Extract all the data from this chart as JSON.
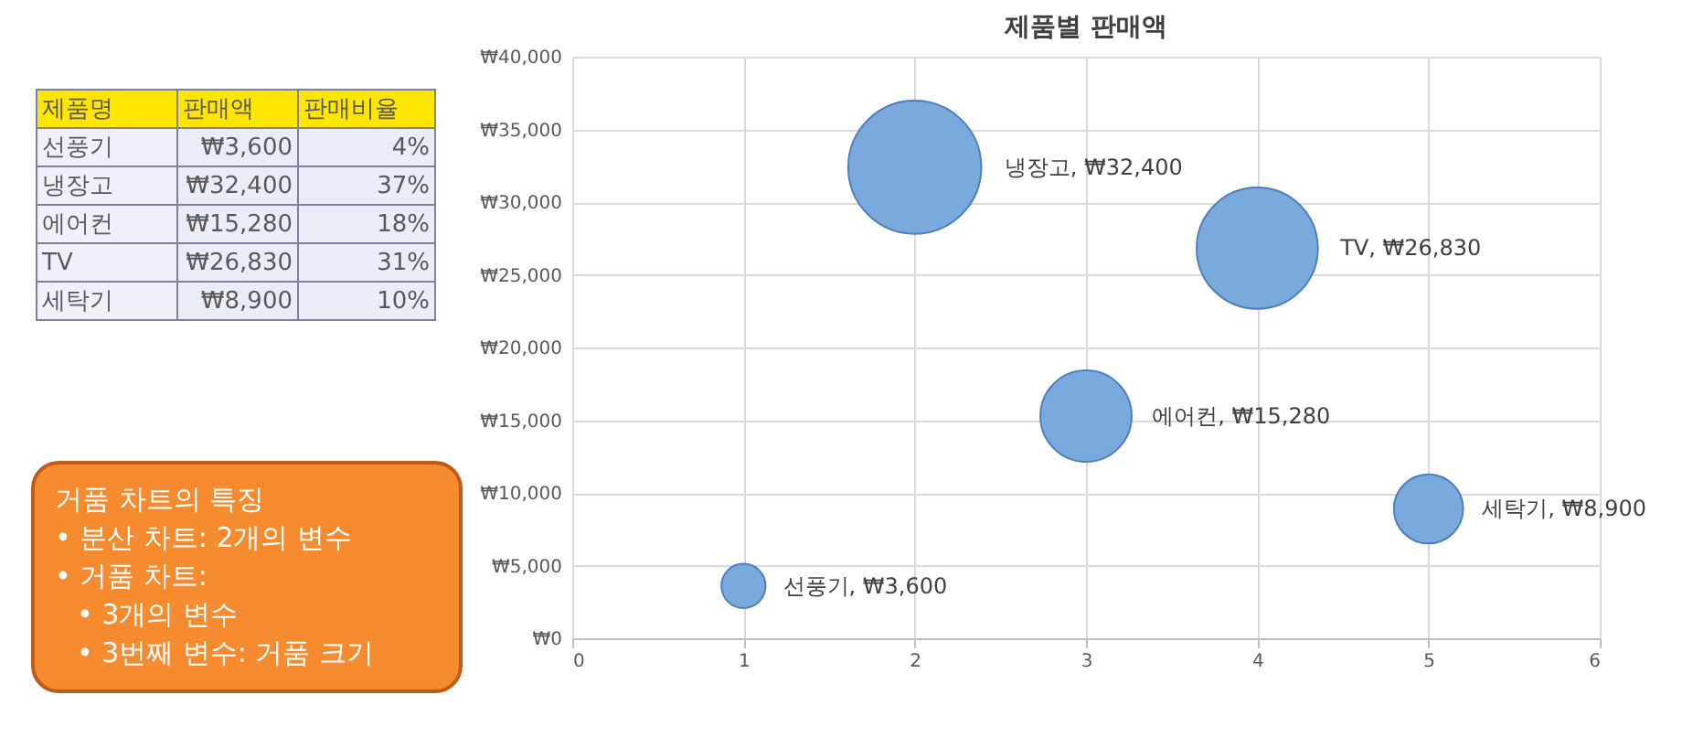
{
  "chart_data": {
    "type": "bubble",
    "title": "제품별 판매액",
    "series": [
      {
        "color": "#7aa9de",
        "x": [
          1
        ],
        "values": [
          3600
        ],
        "sizes": [
          0.11
        ],
        "value_labels": [
          "선풍기, ₩3,600"
        ]
      },
      {
        "color": "#7aa9de",
        "x": [
          2
        ],
        "values": [
          32400
        ],
        "sizes": [
          1
        ],
        "value_labels": [
          "냉장고, ₩32,400"
        ]
      },
      {
        "color": "#7aa9de",
        "x": [
          3
        ],
        "values": [
          15280
        ],
        "sizes": [
          0.47
        ],
        "value_labels": [
          "에어컨, ₩15,280"
        ]
      },
      {
        "color": "#7aa9de",
        "x": [
          4
        ],
        "values": [
          26830
        ],
        "sizes": [
          0.83
        ],
        "value_labels": [
          "TV, ₩26,830"
        ]
      },
      {
        "color": "#7aa9de",
        "x": [
          5
        ],
        "values": [
          8900
        ],
        "sizes": [
          0.27
        ],
        "value_labels": [
          "세탁기, ₩8,900"
        ]
      }
    ],
    "xlim": [
      0,
      6
    ],
    "xticks": [
      0,
      1,
      2,
      3,
      4,
      5,
      6
    ],
    "ylim": [
      0,
      40000
    ],
    "yticks": [
      {
        "value": 0,
        "label": "₩0"
      },
      {
        "value": 5000,
        "label": "₩5,000"
      },
      {
        "value": 10000,
        "label": "₩10,000"
      },
      {
        "value": 15000,
        "label": "₩15,000"
      },
      {
        "value": 20000,
        "label": "₩20,000"
      },
      {
        "value": 25000,
        "label": "₩25,000"
      },
      {
        "value": 30000,
        "label": "₩30,000"
      },
      {
        "value": 35000,
        "label": "₩35,000"
      },
      {
        "value": 40000,
        "label": "₩40,000"
      }
    ],
    "grid": true,
    "annotations": [
      "제품명",
      "판매액",
      "판매비율",
      "선풍기",
      "₩3,600",
      "4%",
      "냉장고",
      "₩32,400",
      "37%",
      "에어컨",
      "₩15,280",
      "18%",
      "TV",
      "₩26,830",
      "31%",
      "세탁기",
      "₩8,900",
      "10%",
      "거품 차트의 특징",
      "• 분산 차트: 2개의 변수",
      "• 거품 차트:",
      "• 3개의 변수",
      "• 3번째 변수: 거품 크기"
    ]
  }
}
